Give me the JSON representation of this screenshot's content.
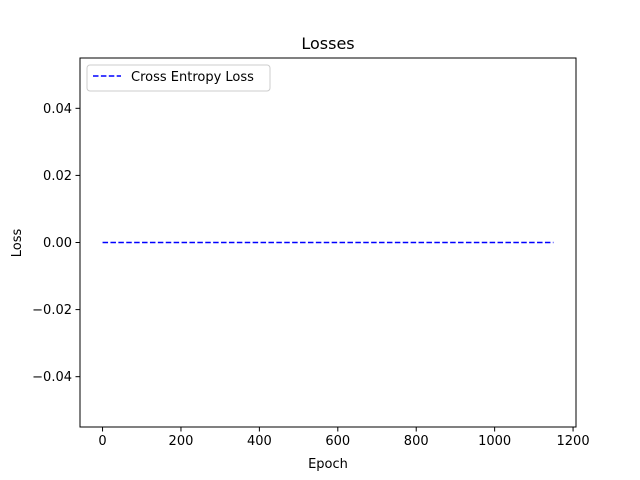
{
  "chart_data": {
    "type": "line",
    "title": "Losses",
    "xlabel": "Epoch",
    "ylabel": "Loss",
    "xlim": [
      -57.5,
      1207.5
    ],
    "ylim": [
      -0.055,
      0.055
    ],
    "xticks": [
      0,
      200,
      400,
      600,
      800,
      1000,
      1200
    ],
    "xtick_labels": [
      "0",
      "200",
      "400",
      "600",
      "800",
      "1000",
      "1200"
    ],
    "yticks": [
      -0.04,
      -0.02,
      0.0,
      0.02,
      0.04
    ],
    "ytick_labels": [
      "−0.04",
      "−0.02",
      "0.00",
      "0.02",
      "0.04"
    ],
    "grid": false,
    "legend_position": "upper-left",
    "series": [
      {
        "name": "Cross Entropy Loss",
        "color": "#0000ff",
        "line_style": "dashed",
        "x": [
          0,
          1150
        ],
        "y": [
          0.0,
          0.0
        ]
      }
    ]
  }
}
